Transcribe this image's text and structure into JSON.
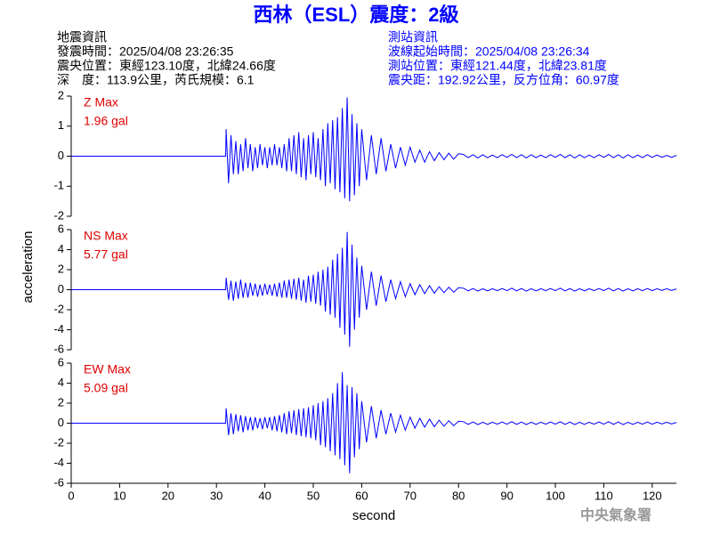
{
  "header": {
    "title": "西林（ESL）震度：2級",
    "title_color": "#0000ff",
    "left": [
      "地震資訊",
      "發震時間：2025/04/08 23:26:35",
      "震央位置：東經123.10度，北緯24.66度",
      "深　度：113.9公里，芮氏規模：6.1"
    ],
    "right": [
      "測站資訊",
      "波線起始時間：2025/04/08 23:26:34",
      "測站位置：東經121.44度，北緯23.81度",
      "震央距：192.92公里，反方位角：60.97度"
    ],
    "right_color": "#0000ff"
  },
  "footer": "中央氣象署",
  "chart_data": [
    {
      "type": "line",
      "annotation": [
        "Z Max",
        "1.96 gal"
      ],
      "annotation_color": "#e00000",
      "color": "#0000ff",
      "xlim": [
        0,
        125
      ],
      "ylim": [
        -2,
        2
      ],
      "yticks": [
        -2,
        -1,
        0,
        1,
        2
      ],
      "x": [
        0,
        31.9,
        32,
        32.5,
        33,
        33.5,
        34,
        34.5,
        35,
        35.5,
        36,
        36.5,
        37,
        37.5,
        38,
        38.5,
        39,
        39.5,
        40,
        40.5,
        41,
        41.5,
        42,
        42.5,
        43,
        43.5,
        44,
        44.5,
        45,
        45.5,
        46,
        46.5,
        47,
        47.5,
        48,
        48.5,
        49,
        49.5,
        50,
        50.5,
        51,
        51.5,
        52,
        52.5,
        53,
        53.5,
        54,
        54.5,
        55,
        55.5,
        56,
        56.5,
        57,
        57.5,
        58,
        58.5,
        59,
        59.5,
        60,
        61,
        62,
        63,
        64,
        65,
        66,
        67,
        68,
        69,
        70,
        71,
        72,
        73,
        74,
        75,
        76,
        77,
        78,
        79,
        80,
        81,
        82,
        83,
        84,
        85,
        86,
        87,
        88,
        89,
        90,
        91,
        92,
        93,
        94,
        95,
        96,
        97,
        98,
        99,
        100,
        101,
        102,
        103,
        104,
        105,
        106,
        107,
        108,
        109,
        110,
        111,
        112,
        113,
        114,
        115,
        116,
        117,
        118,
        119,
        120,
        121,
        122,
        123,
        124,
        125
      ],
      "values": [
        0,
        0,
        0.9,
        -0.9,
        0.7,
        -0.6,
        0.5,
        -0.6,
        0.4,
        -0.5,
        0.6,
        -0.4,
        0.4,
        -0.5,
        0.3,
        -0.4,
        0.4,
        -0.3,
        0.3,
        -0.4,
        0.3,
        -0.3,
        0.4,
        -0.3,
        0.3,
        -0.4,
        0.4,
        -0.5,
        0.6,
        -0.5,
        0.7,
        -0.6,
        0.8,
        -0.7,
        0.6,
        -0.8,
        0.7,
        -0.6,
        0.8,
        -0.7,
        0.6,
        -0.8,
        0.9,
        -1.0,
        1.1,
        -0.9,
        1.2,
        -1.1,
        1.3,
        -1.2,
        1.6,
        -1.4,
        1.96,
        -1.5,
        1.4,
        -1.3,
        1.1,
        -1.0,
        0.9,
        -0.8,
        0.7,
        -0.6,
        0.6,
        -0.5,
        0.4,
        -0.4,
        0.3,
        -0.3,
        0.3,
        -0.2,
        0.2,
        -0.2,
        0.15,
        -0.15,
        0.12,
        -0.12,
        0.1,
        -0.1,
        0.08,
        0.06,
        -0.05,
        0.05,
        -0.06,
        0.05,
        -0.05,
        0.04,
        -0.05,
        0.05,
        -0.04,
        0.06,
        -0.05,
        0.05,
        -0.06,
        0.05,
        -0.05,
        0.04,
        -0.05,
        0.05,
        -0.04,
        0.06,
        -0.05,
        0.05,
        -0.06,
        0.05,
        -0.05,
        0.04,
        -0.05,
        0.05,
        -0.04,
        0.06,
        -0.05,
        0.05,
        -0.06,
        0.05,
        -0.05,
        0.04,
        -0.05,
        0.05,
        -0.04,
        0.04,
        -0.04,
        0.03,
        -0.04,
        0.03
      ]
    },
    {
      "type": "line",
      "annotation": [
        "NS Max",
        "5.77 gal"
      ],
      "annotation_color": "#e00000",
      "color": "#0000ff",
      "ylabel": "acceleration",
      "xlim": [
        0,
        125
      ],
      "ylim": [
        -6,
        6
      ],
      "yticks": [
        -6,
        -4,
        -2,
        0,
        2,
        4,
        6
      ],
      "x": [
        0,
        31.9,
        32,
        32.5,
        33,
        33.5,
        34,
        34.5,
        35,
        35.5,
        36,
        36.5,
        37,
        37.5,
        38,
        38.5,
        39,
        39.5,
        40,
        40.5,
        41,
        41.5,
        42,
        42.5,
        43,
        43.5,
        44,
        44.5,
        45,
        45.5,
        46,
        46.5,
        47,
        47.5,
        48,
        48.5,
        49,
        49.5,
        50,
        50.5,
        51,
        51.5,
        52,
        52.5,
        53,
        53.5,
        54,
        54.5,
        55,
        55.5,
        56,
        56.5,
        57,
        57.5,
        58,
        58.5,
        59,
        59.5,
        60,
        61,
        62,
        63,
        64,
        65,
        66,
        67,
        68,
        69,
        70,
        71,
        72,
        73,
        74,
        75,
        76,
        77,
        78,
        79,
        80,
        81,
        82,
        83,
        84,
        85,
        86,
        87,
        88,
        89,
        90,
        91,
        92,
        93,
        94,
        95,
        96,
        97,
        98,
        99,
        100,
        101,
        102,
        103,
        104,
        105,
        106,
        107,
        108,
        109,
        110,
        111,
        112,
        113,
        114,
        115,
        116,
        117,
        118,
        119,
        120,
        121,
        122,
        123,
        124,
        125
      ],
      "values": [
        0,
        0,
        1.2,
        -1.0,
        0.9,
        -1.1,
        0.8,
        -0.9,
        1.0,
        -0.8,
        0.7,
        -0.8,
        0.7,
        -0.6,
        0.6,
        -0.7,
        0.5,
        -0.6,
        0.6,
        -0.5,
        0.5,
        -0.6,
        0.6,
        -0.7,
        0.7,
        -0.8,
        0.9,
        -0.8,
        1.0,
        -0.9,
        1.1,
        -1.0,
        1.2,
        -1.1,
        1.0,
        -1.3,
        1.4,
        -1.2,
        1.5,
        -1.4,
        1.8,
        -1.6,
        2.0,
        -2.2,
        2.3,
        -2.5,
        3.0,
        -2.8,
        3.6,
        -3.8,
        4.2,
        -4.5,
        5.77,
        -5.7,
        4.5,
        -4.0,
        3.2,
        -2.8,
        2.4,
        -2.0,
        1.8,
        -1.6,
        1.4,
        -1.2,
        1.0,
        -0.9,
        0.8,
        -0.7,
        0.6,
        -0.5,
        0.5,
        -0.4,
        0.4,
        -0.35,
        0.3,
        -0.3,
        0.25,
        -0.25,
        0.2,
        0.15,
        -0.12,
        0.12,
        -0.14,
        0.1,
        -0.12,
        0.1,
        -0.1,
        0.12,
        -0.1,
        0.15,
        -0.12,
        0.12,
        -0.14,
        0.1,
        -0.12,
        0.1,
        -0.1,
        0.12,
        -0.1,
        0.15,
        -0.12,
        0.12,
        -0.14,
        0.1,
        -0.12,
        0.1,
        -0.1,
        0.12,
        -0.1,
        0.15,
        -0.12,
        0.12,
        -0.14,
        0.1,
        -0.12,
        0.1,
        -0.1,
        0.12,
        -0.1,
        0.1,
        -0.08,
        0.1,
        -0.08,
        0.08
      ]
    },
    {
      "type": "line",
      "annotation": [
        "EW Max",
        "5.09 gal"
      ],
      "annotation_color": "#e00000",
      "color": "#0000ff",
      "xlabel": "second",
      "xlim": [
        0,
        125
      ],
      "ylim": [
        -6,
        6
      ],
      "yticks": [
        -6,
        -4,
        -2,
        0,
        2,
        4,
        6
      ],
      "xticks": [
        0,
        10,
        20,
        30,
        40,
        50,
        60,
        70,
        80,
        90,
        100,
        110,
        120
      ],
      "x": [
        0,
        31.9,
        32,
        32.5,
        33,
        33.5,
        34,
        34.5,
        35,
        35.5,
        36,
        36.5,
        37,
        37.5,
        38,
        38.5,
        39,
        39.5,
        40,
        40.5,
        41,
        41.5,
        42,
        42.5,
        43,
        43.5,
        44,
        44.5,
        45,
        45.5,
        46,
        46.5,
        47,
        47.5,
        48,
        48.5,
        49,
        49.5,
        50,
        50.5,
        51,
        51.5,
        52,
        52.5,
        53,
        53.5,
        54,
        54.5,
        55,
        55.5,
        56,
        56.5,
        57,
        57.5,
        58,
        58.5,
        59,
        59.5,
        60,
        61,
        62,
        63,
        64,
        65,
        66,
        67,
        68,
        69,
        70,
        71,
        72,
        73,
        74,
        75,
        76,
        77,
        78,
        79,
        80,
        81,
        82,
        83,
        84,
        85,
        86,
        87,
        88,
        89,
        90,
        91,
        92,
        93,
        94,
        95,
        96,
        97,
        98,
        99,
        100,
        101,
        102,
        103,
        104,
        105,
        106,
        107,
        108,
        109,
        110,
        111,
        112,
        113,
        114,
        115,
        116,
        117,
        118,
        119,
        120,
        121,
        122,
        123,
        124,
        125
      ],
      "values": [
        0,
        0,
        1.5,
        -1.2,
        1.0,
        -1.1,
        0.9,
        -0.8,
        0.8,
        -0.9,
        0.7,
        -0.7,
        0.6,
        -0.7,
        0.6,
        -0.5,
        0.5,
        -0.6,
        0.6,
        -0.5,
        0.6,
        -0.7,
        0.7,
        -0.8,
        0.8,
        -0.9,
        1.0,
        -1.1,
        1.2,
        -1.0,
        1.3,
        -1.2,
        1.4,
        -1.3,
        1.5,
        -1.4,
        1.6,
        -1.5,
        1.8,
        -1.7,
        2.0,
        -2.2,
        2.2,
        -2.4,
        2.5,
        -2.8,
        3.0,
        -3.2,
        4.0,
        -3.6,
        5.09,
        -4.2,
        3.8,
        -5.0,
        3.6,
        -3.4,
        3.0,
        -2.6,
        2.2,
        -1.9,
        1.7,
        -1.5,
        1.3,
        -1.1,
        1.0,
        -0.9,
        0.8,
        -0.7,
        0.6,
        -0.5,
        0.5,
        -0.4,
        0.4,
        -0.35,
        0.3,
        -0.3,
        0.25,
        -0.25,
        0.2,
        0.15,
        -0.12,
        0.12,
        -0.14,
        0.1,
        -0.12,
        0.1,
        -0.1,
        0.12,
        -0.1,
        0.15,
        -0.12,
        0.12,
        -0.14,
        0.1,
        -0.12,
        0.1,
        -0.1,
        0.12,
        -0.1,
        0.15,
        -0.12,
        0.12,
        -0.14,
        0.1,
        -0.12,
        0.1,
        -0.1,
        0.12,
        -0.1,
        0.15,
        -0.12,
        0.12,
        -0.14,
        0.1,
        -0.12,
        0.1,
        -0.1,
        0.12,
        -0.1,
        0.1,
        -0.08,
        0.1,
        -0.08,
        0.08
      ]
    }
  ]
}
